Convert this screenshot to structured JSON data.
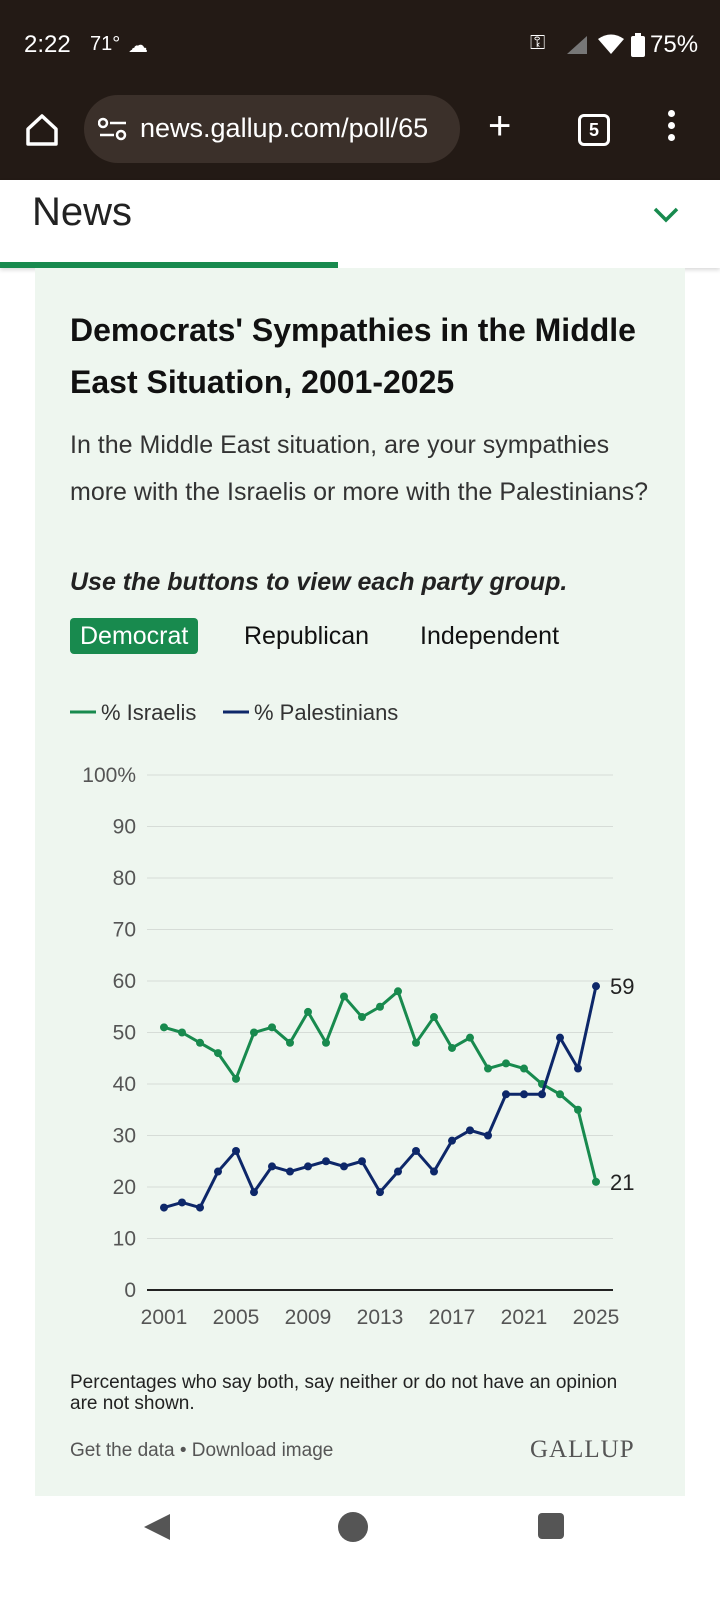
{
  "status": {
    "time": "2:22",
    "temperature": "71°",
    "battery": "75%",
    "icons": [
      "weather-icon",
      "vpn-key-icon",
      "signal-icon",
      "wifi-icon",
      "battery-icon"
    ]
  },
  "browser": {
    "url": "news.gallup.com/poll/65",
    "tab_count": "5"
  },
  "page": {
    "section": "News",
    "progress_fraction": 0.47
  },
  "card": {
    "title": "Democrats' Sympathies in the Middle East Situation, 2001-2025",
    "question": "In the Middle East situation, are your sympathies more with the Israelis or more with the Palestinians?",
    "instruction": "Use the buttons to view each party group.",
    "buttons": [
      {
        "label": "Democrat",
        "active": true
      },
      {
        "label": "Republican",
        "active": false
      },
      {
        "label": "Independent",
        "active": false
      }
    ],
    "footnote": "Percentages who say both, say neither or do not have an opinion are not shown.",
    "link_data": "Get the data",
    "link_sep": " • ",
    "link_image": "Download image",
    "logo": "GALLUP"
  },
  "colors": {
    "israelis": "#188a4e",
    "palestinians": "#0d2769",
    "accent": "#188a4e",
    "card_bg": "#eef6ef"
  },
  "chart_data": {
    "type": "line",
    "x": [
      2001,
      2002,
      2003,
      2004,
      2005,
      2006,
      2007,
      2008,
      2009,
      2010,
      2011,
      2012,
      2013,
      2014,
      2015,
      2016,
      2017,
      2018,
      2019,
      2020,
      2021,
      2022,
      2023,
      2024,
      2025
    ],
    "series": [
      {
        "name": "% Israelis",
        "values": [
          51,
          50,
          48,
          46,
          41,
          50,
          51,
          48,
          54,
          48,
          57,
          53,
          55,
          58,
          48,
          53,
          47,
          49,
          43,
          44,
          43,
          40,
          38,
          35,
          21
        ]
      },
      {
        "name": "% Palestinians",
        "values": [
          16,
          17,
          16,
          23,
          27,
          19,
          24,
          23,
          24,
          25,
          24,
          25,
          19,
          23,
          27,
          23,
          29,
          31,
          30,
          38,
          38,
          38,
          49,
          43,
          59
        ]
      }
    ],
    "x_ticks": [
      "2001",
      "2005",
      "2009",
      "2013",
      "2017",
      "2021",
      "2025"
    ],
    "y_ticks": [
      "0",
      "10",
      "20",
      "30",
      "40",
      "50",
      "60",
      "70",
      "80",
      "90",
      "100%"
    ],
    "end_labels": [
      "21",
      "59"
    ],
    "ylim": [
      0,
      100
    ],
    "grid": true,
    "legend_position": "top-left"
  }
}
